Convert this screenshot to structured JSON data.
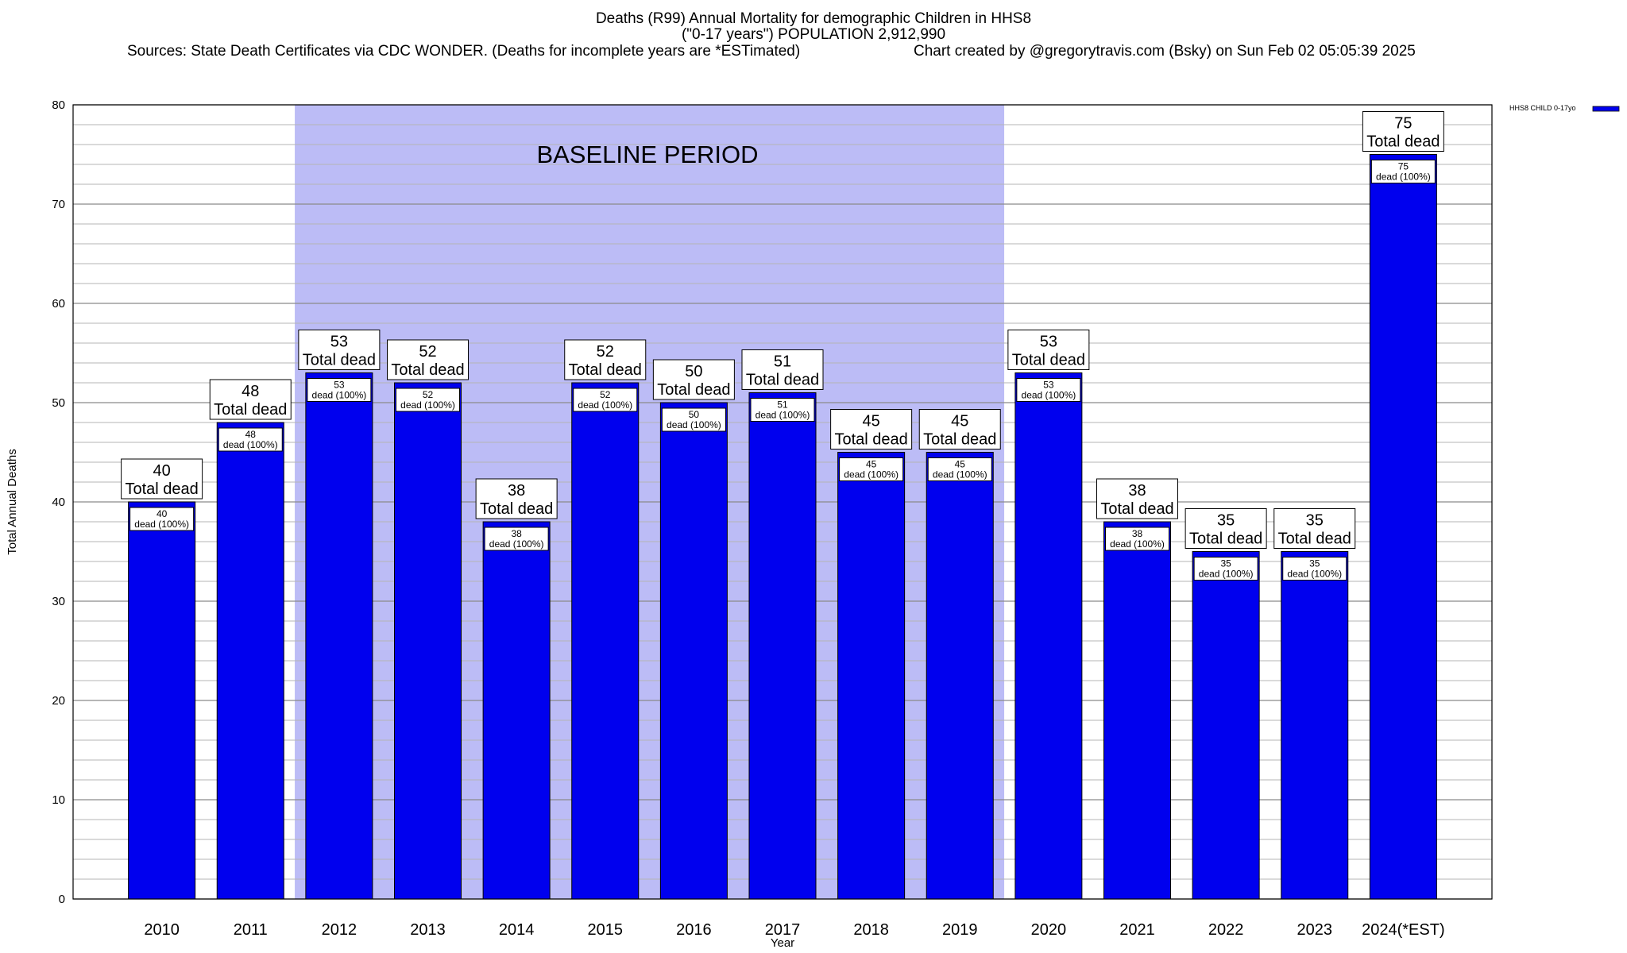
{
  "header": {
    "title_line1": "Deaths (R99) Annual Mortality for demographic Children in HHS8",
    "title_line2": "(\"0-17 years\") POPULATION 2,912,990",
    "sources": "Sources: State Death Certificates via CDC WONDER. (Deaths for incomplete years are *ESTimated)",
    "created": "Chart created by @gregorytravis.com (Bsky) on Sun Feb 02 05:05:39 2025"
  },
  "chart_data": {
    "type": "bar",
    "title": "Deaths (R99) Annual Mortality for demographic Children in HHS8",
    "xlabel": "Year",
    "ylabel": "Total Annual Deaths",
    "ylim": [
      0,
      80
    ],
    "yticks": [
      0,
      10,
      20,
      30,
      40,
      50,
      60,
      70,
      80
    ],
    "grid": true,
    "categories": [
      "2010",
      "2011",
      "2012",
      "2013",
      "2014",
      "2015",
      "2016",
      "2017",
      "2018",
      "2019",
      "2020",
      "2021",
      "2022",
      "2023",
      "2024(*EST)"
    ],
    "series": [
      {
        "name": "HHS8 CHILD 0-17yo",
        "color": "#0000ee",
        "values": [
          40,
          48,
          53,
          52,
          38,
          52,
          50,
          51,
          45,
          45,
          53,
          38,
          35,
          35,
          75
        ]
      }
    ],
    "top_label_suffix": "Total dead",
    "inner_label_suffix": "dead (100%)",
    "baseline": {
      "label": "BASELINE PERIOD",
      "from": "2012",
      "to": "2019",
      "color": "#bcbcf6"
    },
    "legend": {
      "label": "HHS8 CHILD 0-17yo",
      "placement": "top-right outside"
    }
  }
}
